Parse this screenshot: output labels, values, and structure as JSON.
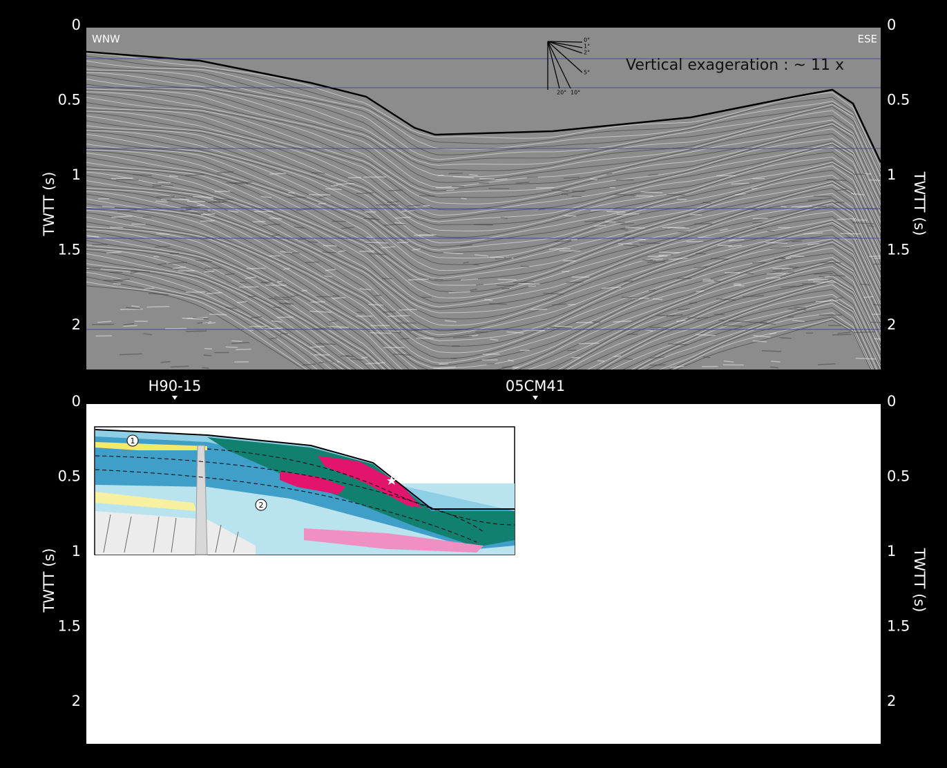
{
  "top_panel": {
    "left_label": "WNW",
    "right_label": "ESE",
    "note": "Vertical exageration : ~ 11 x",
    "angles": [
      "0°",
      "1°",
      "2°",
      "5°",
      "10°",
      "20°"
    ],
    "y_axis_title": "TWTT (s)",
    "yticks": [
      0,
      0.5,
      1,
      1.5,
      2
    ]
  },
  "markers": [
    "H90-15",
    "05CM41"
  ],
  "bottom_panel": {
    "y_axis_title": "TWTT (s)",
    "yticks": [
      0,
      0.5,
      1,
      1.5,
      2
    ],
    "callouts": [
      "1",
      "2"
    ]
  }
}
